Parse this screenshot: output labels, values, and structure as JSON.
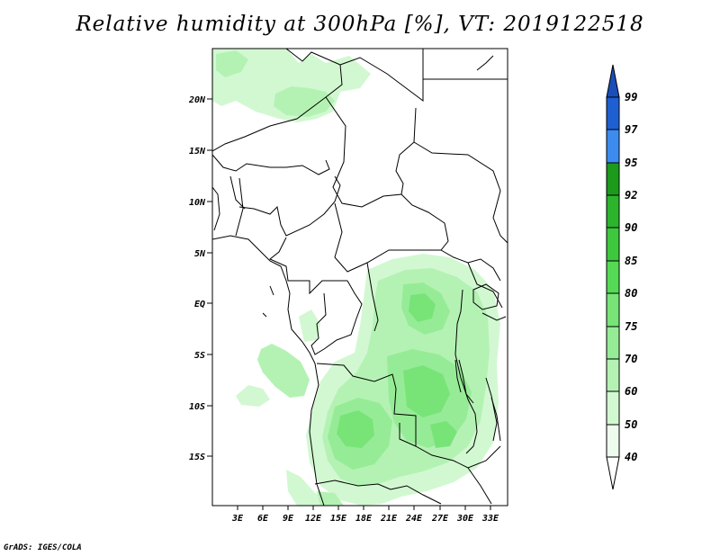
{
  "title": "Relative humidity at 300hPa [%], VT: 2019122518",
  "credit": "GrADS: IGES/COLA",
  "map": {
    "lat_ticks": [
      "20N",
      "15N",
      "10N",
      "5N",
      "EQ",
      "5S",
      "10S",
      "15S"
    ],
    "lon_ticks": [
      "3E",
      "6E",
      "9E",
      "12E",
      "15E",
      "18E",
      "21E",
      "24E",
      "27E",
      "30E",
      "33E"
    ]
  },
  "colorbar": {
    "labels": [
      "99",
      "97",
      "95",
      "92",
      "90",
      "85",
      "80",
      "75",
      "70",
      "60",
      "50",
      "40"
    ],
    "colors": [
      "#1e5fd2",
      "#3c8cf0",
      "#1c9a1c",
      "#2db42d",
      "#3ec83e",
      "#55da55",
      "#78e478",
      "#96ec96",
      "#b4f2b4",
      "#d2f8d2",
      "#eefcee"
    ],
    "top_color": "#1a4eb8"
  }
}
